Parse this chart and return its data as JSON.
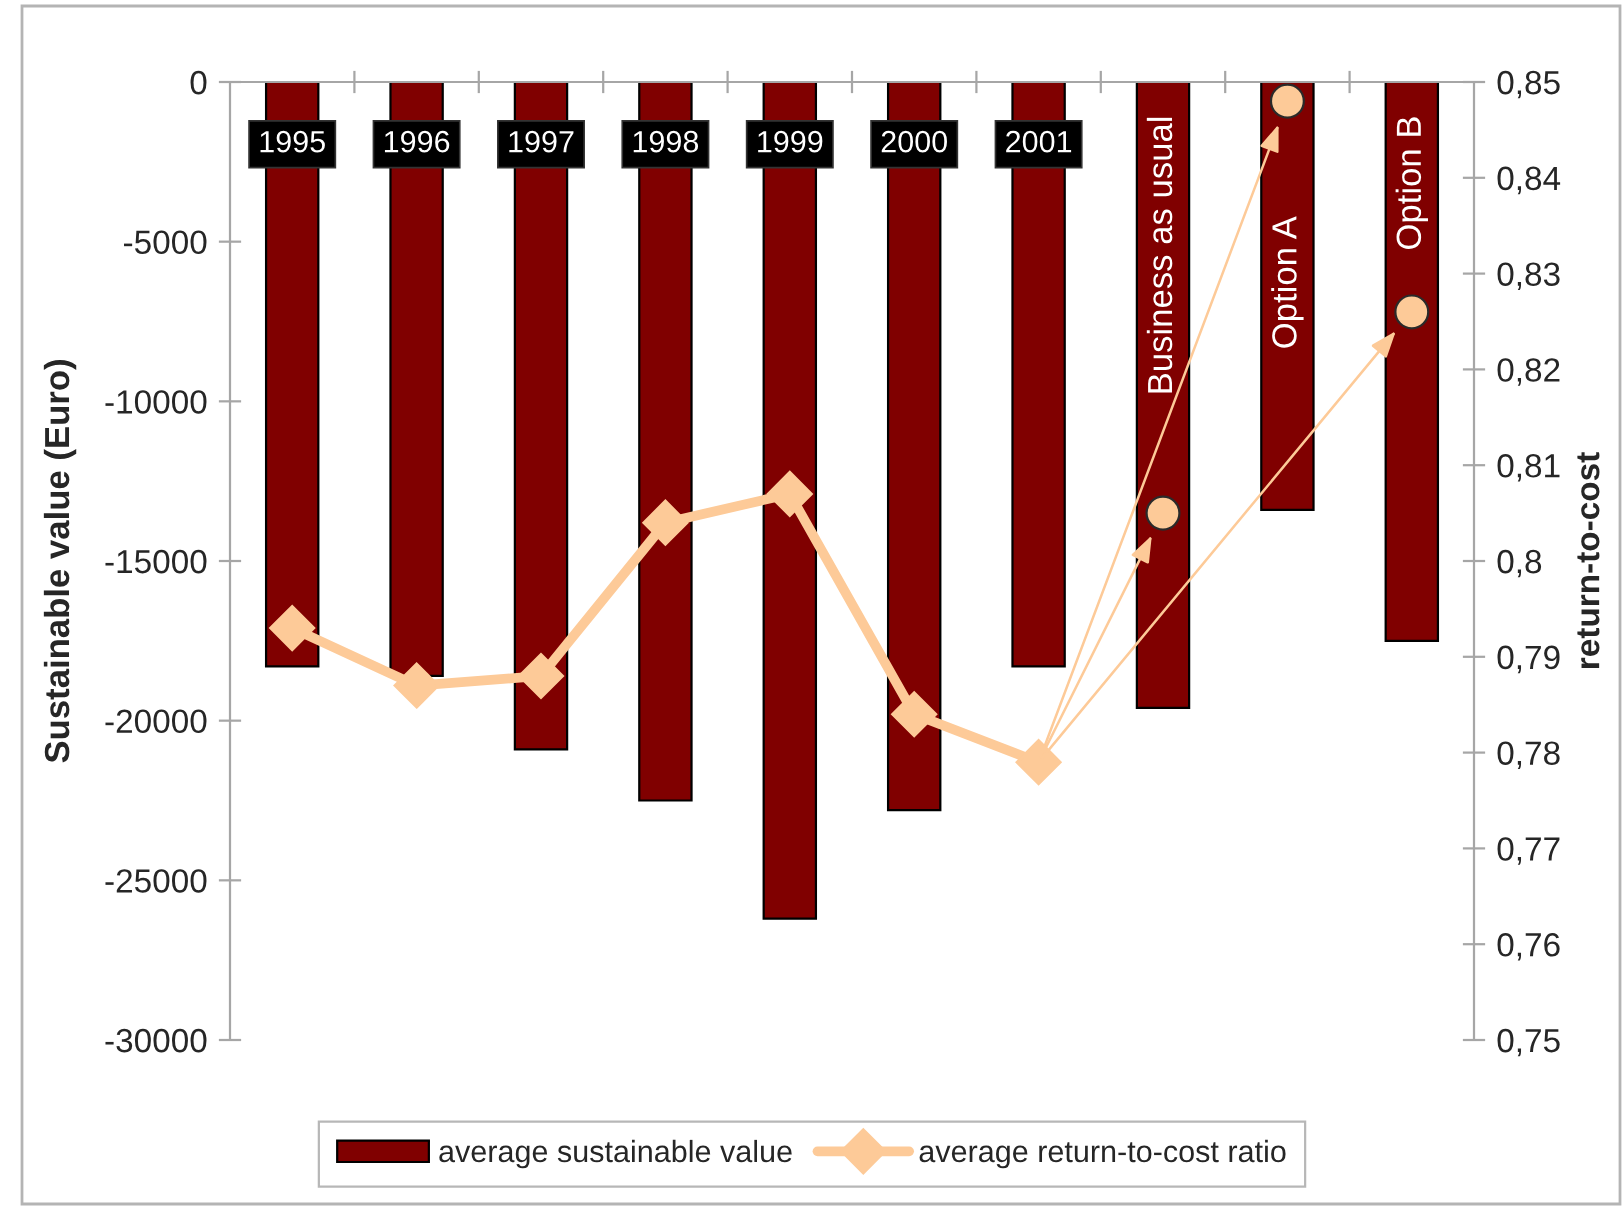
{
  "chart_data": {
    "type": "bar",
    "categories": [
      "1995",
      "1996",
      "1997",
      "1998",
      "1999",
      "2000",
      "2001",
      "Business as usual",
      "Option A",
      "Option B"
    ],
    "series": [
      {
        "name": "average sustainable value",
        "color": "#800000",
        "values": [
          -18300,
          -18600,
          -20900,
          -22500,
          -26200,
          -22800,
          -18300,
          -19600,
          -13400,
          -17500
        ]
      },
      {
        "name": "average return-to-cost ratio",
        "type": "line",
        "axis": "y2",
        "color": "#fdca98",
        "marker": "diamond",
        "values": [
          0.793,
          0.787,
          0.788,
          0.804,
          0.807,
          0.784,
          0.779,
          null,
          null,
          null
        ]
      },
      {
        "type": "scatter",
        "axis": "y2",
        "color": "#fdca98",
        "marker": "circle",
        "values": [
          null,
          null,
          null,
          null,
          null,
          null,
          null,
          0.805,
          0.848,
          0.826
        ]
      }
    ],
    "ylabel": "Sustainable value (Euro)",
    "y2label": "return-to-cost",
    "ylim": [
      -30000,
      0
    ],
    "yticks": [
      -30000,
      -25000,
      -20000,
      -15000,
      -10000,
      -5000,
      0
    ],
    "y2lim": [
      0.75,
      0.85
    ],
    "y2ticks": [
      {
        "value": 0.75,
        "label": "0,75"
      },
      {
        "value": 0.76,
        "label": "0,76"
      },
      {
        "value": 0.77,
        "label": "0,77"
      },
      {
        "value": 0.78,
        "label": "0,78"
      },
      {
        "value": 0.79,
        "label": "0,79"
      },
      {
        "value": 0.8,
        "label": "0,8"
      },
      {
        "value": 0.81,
        "label": "0,81"
      },
      {
        "value": 0.82,
        "label": "0,82"
      },
      {
        "value": 0.83,
        "label": "0,83"
      },
      {
        "value": 0.84,
        "label": "0,84"
      },
      {
        "value": 0.85,
        "label": "0,85"
      }
    ],
    "legend": "bottom"
  }
}
